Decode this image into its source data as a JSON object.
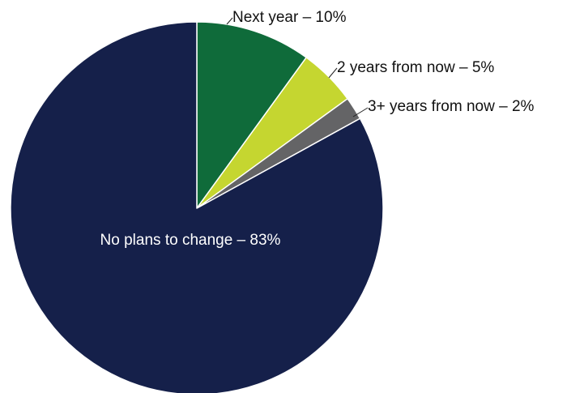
{
  "chart_data": {
    "type": "pie",
    "title": "",
    "start_angle_deg": 0,
    "direction": "clockwise",
    "legend": "none",
    "slices": [
      {
        "name": "Next year",
        "value": 10,
        "label": "Next year – 10%",
        "color": "#0f6b3a",
        "label_position": "outside"
      },
      {
        "name": "2 years from now",
        "value": 5,
        "label": "2 years from now – 5%",
        "color": "#c5d630",
        "label_position": "outside"
      },
      {
        "name": "3+ years from now",
        "value": 2,
        "label": "3+ years from now – 2%",
        "color": "#646466",
        "label_position": "outside"
      },
      {
        "name": "No plans to change",
        "value": 83,
        "label": "No plans to change – 83%",
        "color": "#15204a",
        "label_position": "inside"
      }
    ]
  }
}
